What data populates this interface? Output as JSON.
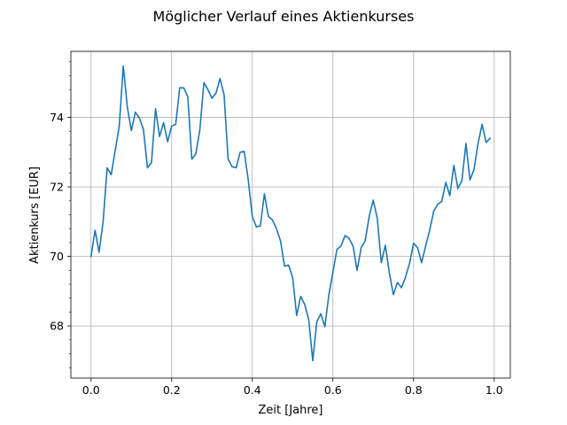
{
  "chart_data": {
    "type": "line",
    "title": "Möglicher Verlauf eines Aktienkurses",
    "xlabel": "Zeit [Jahre]",
    "ylabel": "Aktienkurs [EUR]",
    "xlim": [
      -0.05,
      1.04
    ],
    "ylim": [
      66.5,
      75.9
    ],
    "x_ticks": [
      0.0,
      0.2,
      0.4,
      0.6,
      0.8,
      1.0
    ],
    "x_tick_labels": [
      "0.0",
      "0.2",
      "0.4",
      "0.6",
      "0.8",
      "1.0"
    ],
    "y_ticks": [
      68,
      70,
      72,
      74
    ],
    "y_tick_labels": [
      "68",
      "70",
      "72",
      "74"
    ],
    "y_minor_ticks": [
      66.8,
      67.2,
      67.6,
      68.4,
      68.8,
      69.2,
      69.6,
      70.4,
      70.8,
      71.2,
      71.6,
      72.4,
      72.8,
      73.2,
      73.6,
      74.4,
      74.8,
      75.2,
      75.6
    ],
    "grid": true,
    "line_color": "#1f77b4",
    "series": [
      {
        "x": [
          0.0,
          0.01,
          0.02,
          0.03,
          0.04,
          0.05,
          0.06,
          0.07,
          0.08,
          0.09,
          0.1,
          0.11,
          0.12,
          0.13,
          0.14,
          0.15,
          0.16,
          0.17,
          0.18,
          0.19,
          0.2,
          0.21,
          0.22,
          0.23,
          0.24,
          0.25,
          0.26,
          0.27,
          0.28,
          0.29,
          0.3,
          0.31,
          0.32,
          0.33,
          0.34,
          0.35,
          0.36,
          0.37,
          0.38,
          0.39,
          0.4,
          0.41,
          0.42,
          0.43,
          0.44,
          0.45,
          0.46,
          0.47,
          0.48,
          0.49,
          0.5,
          0.51,
          0.52,
          0.53,
          0.54,
          0.55,
          0.56,
          0.57,
          0.58,
          0.59,
          0.6,
          0.61,
          0.62,
          0.63,
          0.64,
          0.65,
          0.66,
          0.67,
          0.68,
          0.69,
          0.7,
          0.71,
          0.72,
          0.73,
          0.74,
          0.75,
          0.76,
          0.77,
          0.78,
          0.79,
          0.8,
          0.81,
          0.82,
          0.83,
          0.84,
          0.85,
          0.86,
          0.87,
          0.88,
          0.89,
          0.9,
          0.91,
          0.92,
          0.93,
          0.94,
          0.95,
          0.96,
          0.97,
          0.98,
          0.99
        ],
        "y": [
          70.0,
          70.75,
          70.12,
          71.0,
          72.55,
          72.35,
          73.05,
          73.75,
          75.48,
          74.3,
          73.62,
          74.15,
          73.98,
          73.65,
          72.55,
          72.7,
          74.25,
          73.45,
          73.85,
          73.3,
          73.75,
          73.8,
          74.85,
          74.85,
          74.6,
          72.8,
          72.95,
          73.65,
          75.0,
          74.8,
          74.55,
          74.7,
          75.12,
          74.65,
          72.8,
          72.58,
          72.55,
          73.0,
          73.02,
          72.2,
          71.15,
          70.85,
          70.88,
          71.8,
          71.15,
          71.05,
          70.8,
          70.45,
          69.72,
          69.75,
          69.4,
          68.3,
          68.85,
          68.62,
          68.18,
          67.0,
          68.12,
          68.35,
          67.98,
          68.9,
          69.55,
          70.2,
          70.3,
          70.6,
          70.52,
          70.3,
          69.6,
          70.25,
          70.45,
          71.15,
          71.62,
          71.1,
          69.82,
          70.32,
          69.52,
          68.9,
          69.25,
          69.1,
          69.4,
          69.8,
          70.38,
          70.25,
          69.82,
          70.3,
          70.75,
          71.3,
          71.5,
          71.58,
          72.13,
          71.75,
          72.62,
          71.95,
          72.18,
          73.25,
          72.2,
          72.5,
          73.25,
          73.8,
          73.28,
          73.4
        ]
      }
    ]
  }
}
